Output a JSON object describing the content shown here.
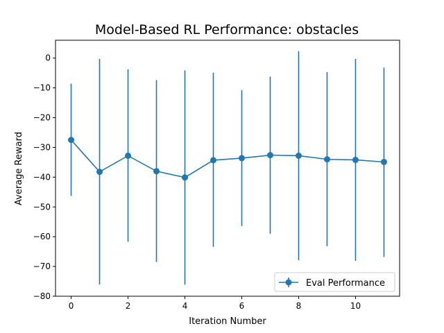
{
  "chart_data": {
    "type": "line",
    "title": "Model-Based RL Performance: obstacles",
    "xlabel": "Iteration Number",
    "ylabel": "Average Reward",
    "xlim": [
      -0.55,
      11.55
    ],
    "ylim": [
      -80,
      6
    ],
    "xticks": [
      0,
      2,
      4,
      6,
      8,
      10
    ],
    "yticks": [
      0,
      -10,
      -20,
      -30,
      -40,
      -50,
      -60,
      -70,
      -80
    ],
    "grid": false,
    "legend_position": "lower-right",
    "series": [
      {
        "name": "Eval Performance",
        "color": "#1f77b4",
        "x": [
          0,
          1,
          2,
          3,
          4,
          5,
          6,
          7,
          8,
          9,
          10,
          11
        ],
        "y": [
          -27.5,
          -38.2,
          -32.8,
          -38.0,
          -40.1,
          -34.3,
          -33.6,
          -32.6,
          -32.8,
          -34.0,
          -34.2,
          -34.9
        ],
        "err_low": [
          -46.3,
          -76.1,
          -61.7,
          -68.5,
          -76.1,
          -63.4,
          -56.4,
          -59.0,
          -67.9,
          -63.2,
          -68.1,
          -66.8
        ],
        "err_high": [
          -8.6,
          -0.3,
          -3.8,
          -7.4,
          -4.1,
          -4.9,
          -10.8,
          -6.2,
          2.3,
          -4.7,
          -0.3,
          -3.2
        ]
      }
    ]
  }
}
